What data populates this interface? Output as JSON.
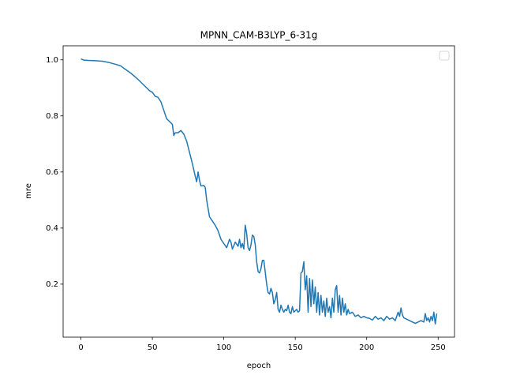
{
  "chart_data": {
    "type": "line",
    "title": "MPNN_CAM-B3LYP_6-31g",
    "x_label": "epoch",
    "y_label": "mre",
    "legend": "upper right",
    "xlim": [
      -12.45,
      261.45
    ],
    "ylim": [
      0.011,
      1.05
    ],
    "xticks": [
      0,
      50,
      100,
      150,
      200,
      250
    ],
    "yticks": [
      0.2,
      0.4,
      0.6,
      0.8,
      {
        "value": 1,
        "label": "1.0"
      }
    ],
    "x": [
      0,
      2,
      5,
      10,
      15,
      20,
      25,
      28,
      30,
      35,
      40,
      45,
      48,
      50,
      52,
      54,
      56,
      58,
      60,
      62,
      64,
      65,
      66,
      68,
      70,
      72,
      74,
      76,
      78,
      80,
      81,
      82,
      83,
      84,
      86,
      87,
      88,
      90,
      92,
      94,
      96,
      98,
      100,
      102,
      104,
      105,
      106,
      108,
      110,
      111,
      112,
      113,
      114,
      115,
      116,
      117,
      118,
      119,
      120,
      121,
      122,
      123,
      124,
      125,
      126,
      127,
      128,
      130,
      131,
      132,
      133,
      134,
      135,
      136,
      137,
      138,
      139,
      140,
      141,
      142,
      143,
      144,
      145,
      146,
      147,
      148,
      149,
      150,
      151,
      152,
      153,
      154,
      155,
      156,
      157,
      158,
      159,
      160,
      161,
      162,
      163,
      164,
      165,
      166,
      167,
      168,
      169,
      170,
      171,
      172,
      173,
      174,
      175,
      176,
      177,
      178,
      179,
      180,
      181,
      182,
      183,
      184,
      185,
      186,
      187,
      188,
      190,
      192,
      194,
      196,
      198,
      200,
      202,
      204,
      206,
      208,
      210,
      212,
      214,
      216,
      218,
      220,
      222,
      223,
      224,
      225,
      226,
      228,
      230,
      232,
      234,
      236,
      238,
      240,
      241,
      242,
      243,
      244,
      245,
      246,
      247,
      248,
      249
    ],
    "series": [
      {
        "color": "#1f77b4",
        "values": [
          1.003,
          0.999,
          0.998,
          0.997,
          0.995,
          0.99,
          0.983,
          0.978,
          0.97,
          0.952,
          0.93,
          0.905,
          0.89,
          0.884,
          0.87,
          0.866,
          0.85,
          0.82,
          0.79,
          0.78,
          0.77,
          0.73,
          0.74,
          0.74,
          0.748,
          0.735,
          0.71,
          0.67,
          0.63,
          0.585,
          0.565,
          0.6,
          0.57,
          0.55,
          0.552,
          0.545,
          0.5,
          0.44,
          0.425,
          0.41,
          0.39,
          0.36,
          0.345,
          0.33,
          0.36,
          0.35,
          0.325,
          0.35,
          0.335,
          0.36,
          0.33,
          0.345,
          0.325,
          0.41,
          0.38,
          0.33,
          0.32,
          0.34,
          0.375,
          0.37,
          0.34,
          0.28,
          0.245,
          0.24,
          0.255,
          0.285,
          0.285,
          0.2,
          0.17,
          0.165,
          0.185,
          0.17,
          0.13,
          0.145,
          0.17,
          0.11,
          0.1,
          0.125,
          0.11,
          0.1,
          0.11,
          0.105,
          0.125,
          0.1,
          0.095,
          0.12,
          0.1,
          0.105,
          0.11,
          0.1,
          0.105,
          0.24,
          0.245,
          0.28,
          0.18,
          0.23,
          0.1,
          0.22,
          0.12,
          0.215,
          0.13,
          0.19,
          0.1,
          0.17,
          0.09,
          0.16,
          0.1,
          0.14,
          0.085,
          0.15,
          0.1,
          0.12,
          0.08,
          0.15,
          0.1,
          0.18,
          0.195,
          0.1,
          0.16,
          0.09,
          0.15,
          0.1,
          0.13,
          0.09,
          0.11,
          0.095,
          0.1,
          0.085,
          0.09,
          0.08,
          0.085,
          0.08,
          0.078,
          0.072,
          0.085,
          0.075,
          0.08,
          0.07,
          0.085,
          0.075,
          0.08,
          0.07,
          0.1,
          0.085,
          0.115,
          0.09,
          0.08,
          0.075,
          0.07,
          0.065,
          0.06,
          0.065,
          0.07,
          0.065,
          0.095,
          0.07,
          0.08,
          0.065,
          0.085,
          0.07,
          0.1,
          0.058,
          0.095
        ]
      }
    ]
  }
}
